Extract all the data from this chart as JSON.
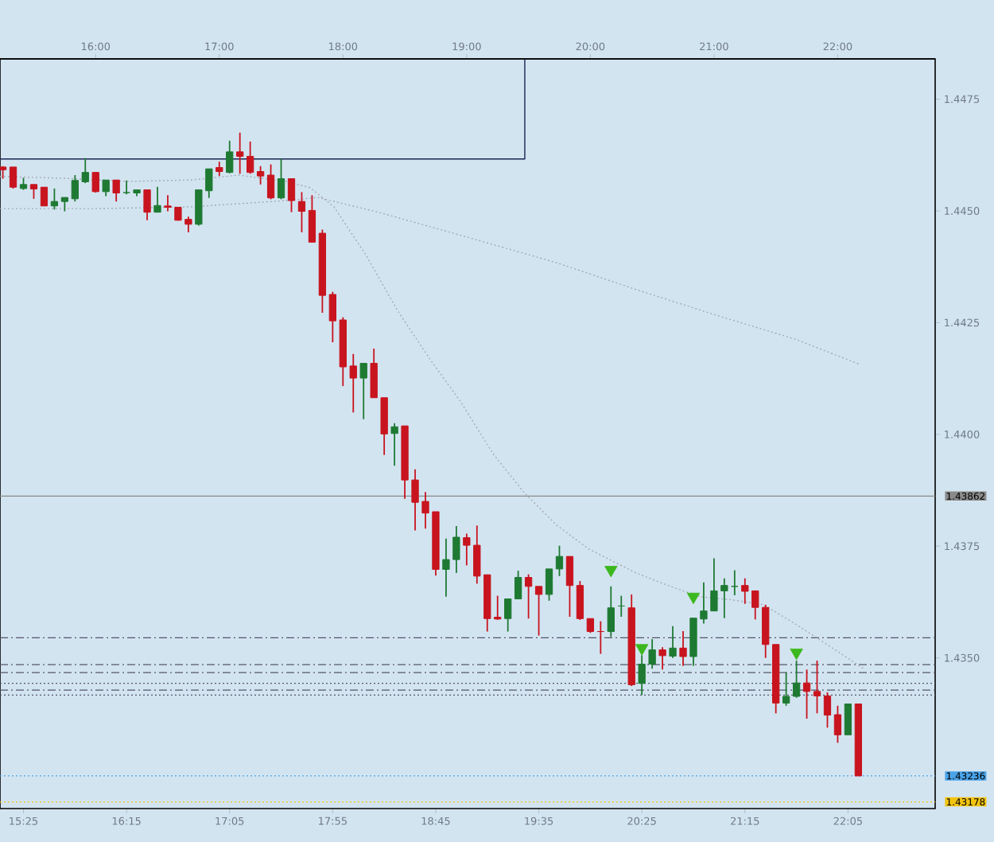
{
  "chart_data": {
    "type": "candlestick",
    "x": [
      15.25,
      15.33333,
      15.41667,
      15.5,
      15.58333,
      15.66667,
      15.75,
      15.83333,
      15.91667,
      16,
      16.08333,
      16.16667,
      16.25,
      16.33333,
      16.41667,
      16.5,
      16.58333,
      16.66667,
      16.75,
      16.83333,
      16.91667,
      17,
      17.08333,
      17.16667,
      17.25,
      17.33333,
      17.41667,
      17.5,
      17.58333,
      17.66667,
      17.75,
      17.83333,
      17.91667,
      18,
      18.08333,
      18.16667,
      18.25,
      18.33333,
      18.41667,
      18.5,
      18.58333,
      18.66667,
      18.75,
      18.83333,
      18.91667,
      19,
      19.08333,
      19.16667,
      19.25,
      19.33333,
      19.41667,
      19.5,
      19.58333,
      19.66667,
      19.75,
      19.83333,
      19.91667,
      20,
      20.08333,
      20.16667,
      20.25,
      20.33333,
      20.41667,
      20.5,
      20.58333,
      20.66667,
      20.75,
      20.83333,
      20.91667,
      21,
      21.08333,
      21.16667,
      21.25,
      21.33333,
      21.41667,
      21.5,
      21.58333,
      21.66667,
      21.75,
      21.83333,
      21.91667,
      22,
      22.08333,
      22.16667
    ],
    "ohlc": [
      [
        1.44598,
        1.446,
        1.44572,
        1.44592
      ],
      [
        1.44598,
        1.44598,
        1.4455,
        1.44553
      ],
      [
        1.4455,
        1.44574,
        1.44547,
        1.44559
      ],
      [
        1.44559,
        1.44559,
        1.44527,
        1.44549
      ],
      [
        1.44553,
        1.44553,
        1.44511,
        1.44511
      ],
      [
        1.44511,
        1.4455,
        1.44503,
        1.44521
      ],
      [
        1.44521,
        1.4453,
        1.44499,
        1.4453
      ],
      [
        1.44527,
        1.4458,
        1.44521,
        1.44568
      ],
      [
        1.44565,
        1.44618,
        1.44562,
        1.44586
      ],
      [
        1.44586,
        1.44586,
        1.44541,
        1.44543
      ],
      [
        1.44543,
        1.44569,
        1.44533,
        1.44569
      ],
      [
        1.44569,
        1.44569,
        1.44521,
        1.4454
      ],
      [
        1.44541,
        1.44568,
        1.44537,
        1.44541
      ],
      [
        1.4454,
        1.44547,
        1.44533,
        1.44547
      ],
      [
        1.44547,
        1.44547,
        1.44479,
        1.44497
      ],
      [
        1.44497,
        1.44554,
        1.44497,
        1.44512
      ],
      [
        1.44511,
        1.44535,
        1.44499,
        1.44508
      ],
      [
        1.44508,
        1.44508,
        1.44478,
        1.44479
      ],
      [
        1.44481,
        1.44487,
        1.44452,
        1.4447
      ],
      [
        1.4447,
        1.44547,
        1.44467,
        1.44547
      ],
      [
        1.44545,
        1.44594,
        1.44529,
        1.44594
      ],
      [
        1.44597,
        1.4461,
        1.44578,
        1.44588
      ],
      [
        1.44586,
        1.44657,
        1.44584,
        1.44632
      ],
      [
        1.44632,
        1.44675,
        1.44583,
        1.44622
      ],
      [
        1.44622,
        1.44655,
        1.44583,
        1.44586
      ],
      [
        1.44588,
        1.446,
        1.44559,
        1.44578
      ],
      [
        1.4458,
        1.44604,
        1.44526,
        1.44529
      ],
      [
        1.44529,
        1.44616,
        1.44526,
        1.44572
      ],
      [
        1.44572,
        1.44572,
        1.44497,
        1.44523
      ],
      [
        1.44521,
        1.44542,
        1.44452,
        1.44499
      ],
      [
        1.44501,
        1.44535,
        1.4443,
        1.4443
      ],
      [
        1.4445,
        1.44458,
        1.44272,
        1.44311
      ],
      [
        1.44313,
        1.44319,
        1.44206,
        1.44254
      ],
      [
        1.44256,
        1.44262,
        1.44108,
        1.44151
      ],
      [
        1.44153,
        1.4418,
        1.44049,
        1.44126
      ],
      [
        1.44126,
        1.44159,
        1.44034,
        1.44159
      ],
      [
        1.44159,
        1.44192,
        1.44082,
        1.44082
      ],
      [
        1.44082,
        1.44082,
        1.43954,
        1.44001
      ],
      [
        1.44002,
        1.44025,
        1.4393,
        1.44017
      ],
      [
        1.44019,
        1.44019,
        1.43856,
        1.43898
      ],
      [
        1.43898,
        1.43922,
        1.43785,
        1.43848
      ],
      [
        1.4385,
        1.43871,
        1.43789,
        1.43824
      ],
      [
        1.43827,
        1.43827,
        1.43684,
        1.43698
      ],
      [
        1.43698,
        1.43767,
        1.43637,
        1.4372
      ],
      [
        1.4372,
        1.43795,
        1.4369,
        1.4377
      ],
      [
        1.43769,
        1.43778,
        1.43707,
        1.43752
      ],
      [
        1.43752,
        1.43796,
        1.43666,
        1.43683
      ],
      [
        1.43686,
        1.43686,
        1.43559,
        1.43588
      ],
      [
        1.43591,
        1.43639,
        1.43585,
        1.43587
      ],
      [
        1.43588,
        1.43632,
        1.43559,
        1.43632
      ],
      [
        1.43632,
        1.43695,
        1.43632,
        1.4368
      ],
      [
        1.4368,
        1.43687,
        1.43588,
        1.4366
      ],
      [
        1.4366,
        1.4366,
        1.4355,
        1.43642
      ],
      [
        1.43642,
        1.43699,
        1.43628,
        1.43699
      ],
      [
        1.43699,
        1.43751,
        1.43683,
        1.43727
      ],
      [
        1.43727,
        1.43727,
        1.43592,
        1.43662
      ],
      [
        1.43662,
        1.43672,
        1.43585,
        1.43588
      ],
      [
        1.43588,
        1.43588,
        1.43556,
        1.43559
      ],
      [
        1.43559,
        1.43582,
        1.43509,
        1.43559
      ],
      [
        1.43559,
        1.4366,
        1.43547,
        1.43612
      ],
      [
        1.43616,
        1.43639,
        1.43592,
        1.43616
      ],
      [
        1.43612,
        1.43642,
        1.43437,
        1.4344
      ],
      [
        1.43443,
        1.43506,
        1.43417,
        1.43486
      ],
      [
        1.43486,
        1.43542,
        1.43476,
        1.43518
      ],
      [
        1.43518,
        1.43524,
        1.43474,
        1.43505
      ],
      [
        1.43504,
        1.43571,
        1.435,
        1.43522
      ],
      [
        1.43522,
        1.4356,
        1.43482,
        1.43503
      ],
      [
        1.43503,
        1.43589,
        1.43482,
        1.43589
      ],
      [
        1.43587,
        1.43669,
        1.43577,
        1.43605
      ],
      [
        1.43605,
        1.43723,
        1.43605,
        1.4365
      ],
      [
        1.4365,
        1.43678,
        1.43589,
        1.43662
      ],
      [
        1.4366,
        1.43696,
        1.4364,
        1.4366
      ],
      [
        1.43662,
        1.43678,
        1.43621,
        1.43649
      ],
      [
        1.4365,
        1.4365,
        1.43586,
        1.43613
      ],
      [
        1.43613,
        1.43619,
        1.435,
        1.4353
      ],
      [
        1.4353,
        1.4353,
        1.43376,
        1.43399
      ],
      [
        1.43399,
        1.43467,
        1.43393,
        1.43414
      ],
      [
        1.43414,
        1.43494,
        1.43411,
        1.43444
      ],
      [
        1.43444,
        1.43474,
        1.43364,
        1.43425
      ],
      [
        1.43425,
        1.43494,
        1.43376,
        1.43415
      ],
      [
        1.43415,
        1.43423,
        1.43344,
        1.43372
      ],
      [
        1.43373,
        1.43393,
        1.4331,
        1.43328
      ],
      [
        1.43328,
        1.43397,
        1.43328,
        1.43397
      ],
      [
        1.43397,
        1.43397,
        1.43236,
        1.43236
      ]
    ],
    "colors": [
      "#c8141e",
      "#c8141e",
      "#1e7a32",
      "#c8141e",
      "#c8141e",
      "#1e7a32",
      "#1e7a32",
      "#1e7a32",
      "#1e7a32",
      "#c8141e",
      "#1e7a32",
      "#c8141e",
      "#1e7a32",
      "#1e7a32",
      "#c8141e",
      "#1e7a32",
      "#c8141e",
      "#c8141e",
      "#c8141e",
      "#1e7a32",
      "#1e7a32",
      "#c8141e",
      "#1e7a32",
      "#c8141e",
      "#c8141e",
      "#c8141e",
      "#c8141e",
      "#1e7a32",
      "#c8141e",
      "#c8141e",
      "#c8141e",
      "#c8141e",
      "#c8141e",
      "#c8141e",
      "#c8141e",
      "#1e7a32",
      "#c8141e",
      "#c8141e",
      "#1e7a32",
      "#c8141e",
      "#c8141e",
      "#c8141e",
      "#c8141e",
      "#1e7a32",
      "#1e7a32",
      "#c8141e",
      "#c8141e",
      "#c8141e",
      "#c8141e",
      "#1e7a32",
      "#1e7a32",
      "#c8141e",
      "#c8141e",
      "#1e7a32",
      "#1e7a32",
      "#c8141e",
      "#c8141e",
      "#c8141e",
      "#c8141e",
      "#1e7a32",
      "#1e7a32",
      "#c8141e",
      "#1e7a32",
      "#1e7a32",
      "#c8141e",
      "#1e7a32",
      "#c8141e",
      "#1e7a32",
      "#1e7a32",
      "#1e7a32",
      "#1e7a32",
      "#1e7a32",
      "#c8141e",
      "#c8141e",
      "#c8141e",
      "#c8141e",
      "#1e7a32",
      "#1e7a32",
      "#c8141e",
      "#c8141e",
      "#c8141e",
      "#c8141e",
      "#1e7a32",
      "#c8141e"
    ],
    "series": [
      {
        "type": "line",
        "color": "#a3abb2",
        "line_style": "dotted",
        "x": [
          15.227,
          15.741,
          16.255,
          16.77,
          17.155,
          17.348,
          17.541,
          17.734,
          17.927,
          18.184,
          18.441,
          18.699,
          18.956,
          19.213,
          19.47,
          19.727,
          19.985,
          20.37,
          20.628,
          20.885,
          21.142,
          21.4,
          21.657,
          21.914,
          22.21
        ],
        "values": [
          1.44577,
          1.44573,
          1.44566,
          1.44569,
          1.4458,
          1.44573,
          1.44566,
          1.44552,
          1.44509,
          1.44402,
          1.44277,
          1.4417,
          1.44071,
          1.43957,
          1.43868,
          1.43797,
          1.43744,
          1.4369,
          1.43662,
          1.43637,
          1.4363,
          1.43619,
          1.43576,
          1.4353,
          1.43476
        ]
      },
      {
        "type": "line",
        "color": "#a3abb2",
        "line_style": "dotted",
        "x": [
          15.227,
          15.998,
          16.77,
          17.541,
          17.798,
          18.313,
          18.956,
          19.727,
          20.37,
          21.013,
          21.657,
          22.184
        ],
        "values": [
          1.44505,
          1.44505,
          1.44509,
          1.44523,
          1.4453,
          1.44495,
          1.44445,
          1.44384,
          1.44324,
          1.44267,
          1.44213,
          1.44156
        ]
      },
      {
        "type": "line",
        "color": "#1c2455",
        "line_style": "solid",
        "x": [
          15.227,
          19.47,
          19.47
        ],
        "values": [
          1.44616,
          1.44616,
          1.4484
        ]
      },
      {
        "type": "scatter",
        "color": "#3cb81e",
        "marker": "triangle",
        "x": [
          20.16667,
          20.41667,
          20.83333,
          21.66667
        ],
        "values": [
          1.43697,
          1.43522,
          1.43637,
          1.43512
        ]
      }
    ],
    "ref_lines": [
      {
        "axis": "y",
        "value": 1.43862,
        "label": "1.43862",
        "color": "#8a8a8a",
        "line_style": "solid"
      },
      {
        "axis": "y",
        "value": 1.43545,
        "color": "#555566",
        "line_style": "dashed"
      },
      {
        "axis": "y",
        "value": 1.43485,
        "color": "#555566",
        "line_style": "dashed"
      },
      {
        "axis": "y",
        "value": 1.43467,
        "color": "#555566",
        "line_style": "dashed"
      },
      {
        "axis": "y",
        "value": 1.43443,
        "color": "#555566",
        "line_style": "dotted"
      },
      {
        "axis": "y",
        "value": 1.43428,
        "color": "#555566",
        "line_style": "dashed"
      },
      {
        "axis": "y",
        "value": 1.43417,
        "color": "#555566",
        "line_style": "dotted"
      },
      {
        "axis": "y",
        "value": 1.43236,
        "label": "1.43236",
        "color": "#4aa3e8",
        "line_style": "dotted"
      },
      {
        "axis": "y",
        "value": 1.43178,
        "label": "1.43178",
        "color": "#f2c40f",
        "line_style": "dotted"
      }
    ],
    "xlim": [
      15.227,
      22.788
    ],
    "xticks": [
      {
        "value": 15.41667,
        "label": "15:25"
      },
      {
        "value": 16.25,
        "label": "16:15"
      },
      {
        "value": 17.08333,
        "label": "17:05"
      },
      {
        "value": 17.91667,
        "label": "17:55"
      },
      {
        "value": 18.75,
        "label": "18:45"
      },
      {
        "value": 19.58333,
        "label": "19:35"
      },
      {
        "value": 20.41667,
        "label": "20:25"
      },
      {
        "value": 21.25,
        "label": "21:15"
      },
      {
        "value": 22.08333,
        "label": "22:05"
      }
    ],
    "x2lim": [
      15.227,
      22.788
    ],
    "x2ticks": [
      {
        "value": 16,
        "label": "16:00"
      },
      {
        "value": 17,
        "label": "17:00"
      },
      {
        "value": 18,
        "label": "18:00"
      },
      {
        "value": 19,
        "label": "19:00"
      },
      {
        "value": 20,
        "label": "20:00"
      },
      {
        "value": 21,
        "label": "21:00"
      },
      {
        "value": 22,
        "label": "22:00"
      }
    ],
    "ylim": [
      1.43163,
      1.4484
    ],
    "yticks": [
      {
        "value": 1.435,
        "label": "1.4350"
      },
      1.4375,
      {
        "value": 1.44,
        "label": "1.4400"
      },
      1.4425,
      {
        "value": 1.445,
        "label": "1.4450"
      },
      1.4475
    ]
  }
}
